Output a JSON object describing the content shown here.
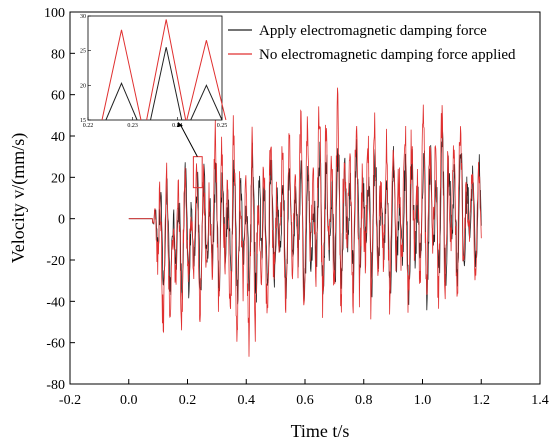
{
  "chart_data": {
    "type": "line",
    "xlabel": "Time t/s",
    "ylabel": "Velocity v/(mm/s)",
    "xlim": [
      -0.2,
      1.4
    ],
    "ylim": [
      -80,
      100
    ],
    "xticks": [
      "-0.2",
      "0.0",
      "0.2",
      "0.4",
      "0.6",
      "0.8",
      "1.0",
      "1.2",
      "1.4"
    ],
    "yticks": [
      "-80",
      "-60",
      "-40",
      "-20",
      "0",
      "20",
      "40",
      "60",
      "80",
      "100"
    ],
    "legend_position": "top-right",
    "series": [
      {
        "name": "Apply electromagnetic damping force",
        "color": "#222222",
        "envelope": {
          "x": [
            0.0,
            0.08,
            0.1,
            0.15,
            0.2,
            0.25,
            0.3,
            0.4,
            0.5,
            0.6,
            0.7,
            0.8,
            0.9,
            1.0,
            1.1,
            1.2
          ],
          "upper": [
            0,
            0,
            30,
            15,
            30,
            28,
            30,
            38,
            32,
            35,
            40,
            38,
            35,
            42,
            48,
            30
          ],
          "lower": [
            0,
            0,
            -40,
            -40,
            -45,
            -40,
            -35,
            -48,
            -38,
            -40,
            -42,
            -38,
            -38,
            -45,
            -40,
            -25
          ]
        }
      },
      {
        "name": "No electromagnetic damping force applied",
        "color": "#e03030",
        "envelope": {
          "x": [
            0.0,
            0.08,
            0.1,
            0.15,
            0.2,
            0.25,
            0.3,
            0.4,
            0.5,
            0.6,
            0.7,
            0.8,
            0.9,
            1.0,
            1.1,
            1.2
          ],
          "upper": [
            0,
            0,
            30,
            25,
            35,
            30,
            50,
            50,
            45,
            55,
            65,
            50,
            55,
            55,
            63,
            30
          ],
          "lower": [
            0,
            0,
            -55,
            -60,
            -50,
            -50,
            -45,
            -75,
            -48,
            -45,
            -50,
            -50,
            -48,
            -48,
            -50,
            -30
          ]
        }
      }
    ],
    "inset": {
      "xlim": [
        0.22,
        0.25
      ],
      "ylim": [
        15,
        30
      ],
      "xticks": [
        "0.22",
        "0.23",
        "0.24",
        "0.25"
      ],
      "yticks": [
        "15",
        "20",
        "25",
        "30"
      ],
      "peaks": [
        {
          "x": 0.2275,
          "black": 20.3,
          "red": 28.0
        },
        {
          "x": 0.2375,
          "black": 25.5,
          "red": 29.5
        },
        {
          "x": 0.2465,
          "black": 20.0,
          "red": 26.5
        }
      ],
      "zoom_region": {
        "x": [
          0.22,
          0.25
        ],
        "y": [
          15,
          30
        ]
      }
    }
  },
  "colors": {
    "damped": "#222222",
    "undamped": "#e03030",
    "axis": "#000000"
  }
}
